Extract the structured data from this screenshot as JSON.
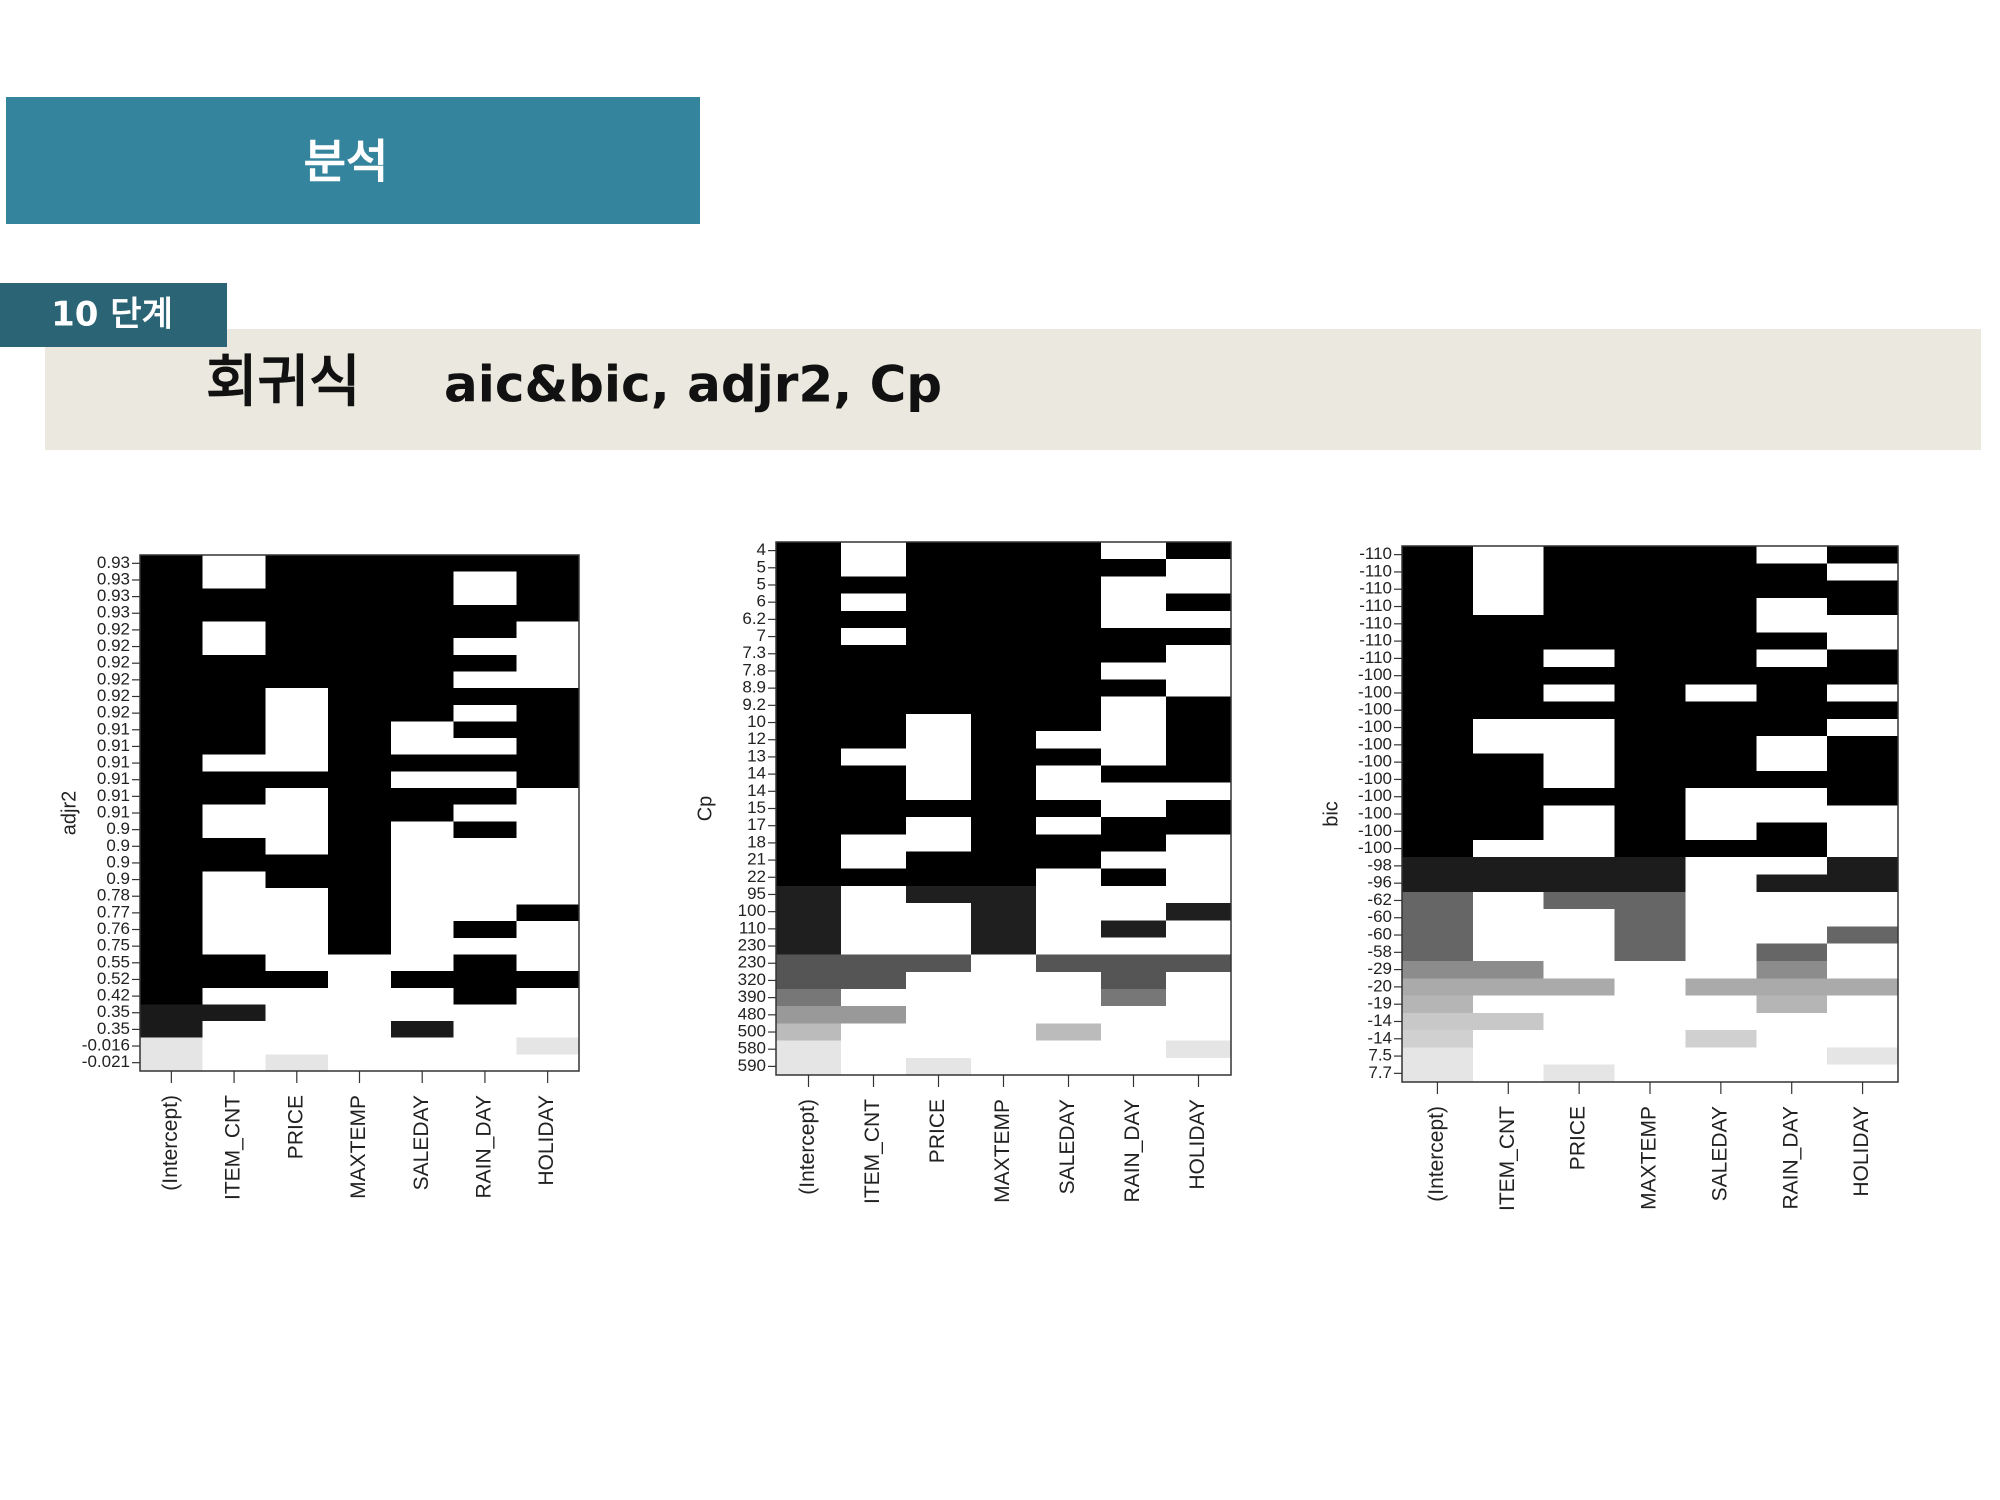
{
  "slide": {
    "section": "분석",
    "step": "10 단계",
    "heading": "회귀식",
    "subheading": "aic&bic, adjr2, Cp"
  },
  "chart_data": [
    {
      "type": "heatmap",
      "ylabel": "adjr2",
      "columns": [
        "(Intercept)",
        "ITEM_CNT",
        "PRICE",
        "MAXTEMP",
        "SALEDAY",
        "RAIN_DAY",
        "HOLIDAY"
      ],
      "row_labels": [
        "0.93",
        "0.93",
        "0.93",
        "0.93",
        "0.92",
        "0.92",
        "0.92",
        "0.92",
        "0.92",
        "0.92",
        "0.91",
        "0.91",
        "0.91",
        "0.91",
        "0.91",
        "0.91",
        "0.9",
        "0.9",
        "0.9",
        "0.9",
        "0.78",
        "0.77",
        "0.76",
        "0.75",
        "0.55",
        "0.52",
        "0.42",
        "0.35",
        "0.35",
        "-0.016",
        "-0.021"
      ],
      "row_colors": [
        "#000000",
        "#000000",
        "#000000",
        "#000000",
        "#000000",
        "#000000",
        "#000000",
        "#000000",
        "#000000",
        "#000000",
        "#000000",
        "#000000",
        "#000000",
        "#000000",
        "#000000",
        "#000000",
        "#000000",
        "#000000",
        "#000000",
        "#000000",
        "#000000",
        "#000000",
        "#000000",
        "#000000",
        "#000000",
        "#000000",
        "#000000",
        "#1a1a1a",
        "#1a1a1a",
        "#e5e5e5",
        "#e5e5e5"
      ],
      "matrix": [
        [
          1,
          0,
          1,
          1,
          1,
          1,
          1
        ],
        [
          1,
          0,
          1,
          1,
          1,
          0,
          1
        ],
        [
          1,
          1,
          1,
          1,
          1,
          0,
          1
        ],
        [
          1,
          1,
          1,
          1,
          1,
          1,
          1
        ],
        [
          1,
          0,
          1,
          1,
          1,
          1,
          0
        ],
        [
          1,
          0,
          1,
          1,
          1,
          0,
          0
        ],
        [
          1,
          1,
          1,
          1,
          1,
          1,
          0
        ],
        [
          1,
          1,
          1,
          1,
          1,
          0,
          0
        ],
        [
          1,
          1,
          0,
          1,
          1,
          1,
          1
        ],
        [
          1,
          1,
          0,
          1,
          1,
          0,
          1
        ],
        [
          1,
          1,
          0,
          1,
          0,
          1,
          1
        ],
        [
          1,
          1,
          0,
          1,
          0,
          0,
          1
        ],
        [
          1,
          0,
          0,
          1,
          1,
          1,
          1
        ],
        [
          1,
          1,
          1,
          1,
          0,
          0,
          1
        ],
        [
          1,
          1,
          0,
          1,
          1,
          1,
          0
        ],
        [
          1,
          0,
          0,
          1,
          1,
          0,
          0
        ],
        [
          1,
          0,
          0,
          1,
          0,
          1,
          0
        ],
        [
          1,
          1,
          0,
          1,
          0,
          0,
          0
        ],
        [
          1,
          1,
          1,
          1,
          0,
          0,
          0
        ],
        [
          1,
          0,
          1,
          1,
          0,
          0,
          0
        ],
        [
          1,
          0,
          0,
          1,
          0,
          0,
          0
        ],
        [
          1,
          0,
          0,
          1,
          0,
          0,
          1
        ],
        [
          1,
          0,
          0,
          1,
          0,
          1,
          0
        ],
        [
          1,
          0,
          0,
          1,
          0,
          0,
          0
        ],
        [
          1,
          1,
          0,
          0,
          0,
          1,
          0
        ],
        [
          1,
          1,
          1,
          0,
          1,
          1,
          1
        ],
        [
          1,
          0,
          0,
          0,
          0,
          1,
          0
        ],
        [
          1,
          1,
          0,
          0,
          0,
          0,
          0
        ],
        [
          1,
          0,
          0,
          0,
          1,
          0,
          0
        ],
        [
          1,
          0,
          0,
          0,
          0,
          0,
          1
        ],
        [
          1,
          0,
          1,
          0,
          0,
          0,
          0
        ]
      ]
    },
    {
      "type": "heatmap",
      "ylabel": "Cp",
      "columns": [
        "(Intercept)",
        "ITEM_CNT",
        "PRICE",
        "MAXTEMP",
        "SALEDAY",
        "RAIN_DAY",
        "HOLIDAY"
      ],
      "row_labels": [
        "4",
        "5",
        "5",
        "6",
        "6.2",
        "7",
        "7.3",
        "7.8",
        "8.9",
        "9.2",
        "10",
        "12",
        "13",
        "14",
        "14",
        "15",
        "17",
        "18",
        "21",
        "22",
        "95",
        "100",
        "110",
        "230",
        "230",
        "320",
        "390",
        "480",
        "500",
        "580",
        "590"
      ],
      "row_colors": [
        "#000000",
        "#000000",
        "#000000",
        "#000000",
        "#000000",
        "#000000",
        "#000000",
        "#000000",
        "#000000",
        "#000000",
        "#000000",
        "#000000",
        "#000000",
        "#000000",
        "#000000",
        "#000000",
        "#000000",
        "#000000",
        "#000000",
        "#000000",
        "#1f1f1f",
        "#1f1f1f",
        "#1f1f1f",
        "#1f1f1f",
        "#555555",
        "#555555",
        "#777777",
        "#999999",
        "#bbbbbb",
        "#e5e5e5",
        "#e5e5e5"
      ],
      "matrix": [
        [
          1,
          0,
          1,
          1,
          1,
          0,
          1
        ],
        [
          1,
          0,
          1,
          1,
          1,
          1,
          0
        ],
        [
          1,
          1,
          1,
          1,
          1,
          0,
          0
        ],
        [
          1,
          0,
          1,
          1,
          1,
          0,
          1
        ],
        [
          1,
          1,
          1,
          1,
          1,
          0,
          0
        ],
        [
          1,
          0,
          1,
          1,
          1,
          1,
          1
        ],
        [
          1,
          1,
          1,
          1,
          1,
          1,
          0
        ],
        [
          1,
          1,
          1,
          1,
          1,
          0,
          0
        ],
        [
          1,
          1,
          1,
          1,
          1,
          1,
          0
        ],
        [
          1,
          1,
          1,
          1,
          1,
          0,
          1
        ],
        [
          1,
          1,
          0,
          1,
          1,
          0,
          1
        ],
        [
          1,
          1,
          0,
          1,
          0,
          0,
          1
        ],
        [
          1,
          0,
          0,
          1,
          1,
          0,
          1
        ],
        [
          1,
          1,
          0,
          1,
          0,
          1,
          1
        ],
        [
          1,
          1,
          0,
          1,
          0,
          0,
          0
        ],
        [
          1,
          1,
          1,
          1,
          1,
          0,
          1
        ],
        [
          1,
          1,
          0,
          1,
          0,
          1,
          1
        ],
        [
          1,
          0,
          0,
          1,
          1,
          1,
          0
        ],
        [
          1,
          0,
          1,
          1,
          1,
          0,
          0
        ],
        [
          1,
          1,
          1,
          1,
          0,
          1,
          0
        ],
        [
          1,
          0,
          1,
          1,
          0,
          0,
          0
        ],
        [
          1,
          0,
          0,
          1,
          0,
          0,
          1
        ],
        [
          1,
          0,
          0,
          1,
          0,
          1,
          0
        ],
        [
          1,
          0,
          0,
          1,
          0,
          0,
          0
        ],
        [
          1,
          1,
          1,
          0,
          1,
          1,
          1
        ],
        [
          1,
          1,
          0,
          0,
          0,
          1,
          0
        ],
        [
          1,
          0,
          0,
          0,
          0,
          1,
          0
        ],
        [
          1,
          1,
          0,
          0,
          0,
          0,
          0
        ],
        [
          1,
          0,
          0,
          0,
          1,
          0,
          0
        ],
        [
          1,
          0,
          0,
          0,
          0,
          0,
          1
        ],
        [
          1,
          0,
          1,
          0,
          0,
          0,
          0
        ]
      ]
    },
    {
      "type": "heatmap",
      "ylabel": "bic",
      "columns": [
        "(Intercept)",
        "ITEM_CNT",
        "PRICE",
        "MAXTEMP",
        "SALEDAY",
        "RAIN_DAY",
        "HOLIDAY"
      ],
      "row_labels": [
        "-110",
        "-110",
        "-110",
        "-110",
        "-110",
        "-110",
        "-110",
        "-100",
        "-100",
        "-100",
        "-100",
        "-100",
        "-100",
        "-100",
        "-100",
        "-100",
        "-100",
        "-100",
        "-98",
        "-96",
        "-62",
        "-60",
        "-60",
        "-58",
        "-29",
        "-20",
        "-19",
        "-14",
        "-14",
        "7.5",
        "7.7"
      ],
      "row_colors": [
        "#000000",
        "#000000",
        "#000000",
        "#000000",
        "#000000",
        "#000000",
        "#000000",
        "#000000",
        "#000000",
        "#000000",
        "#000000",
        "#000000",
        "#000000",
        "#000000",
        "#000000",
        "#000000",
        "#000000",
        "#000000",
        "#1c1c1c",
        "#1c1c1c",
        "#666666",
        "#666666",
        "#666666",
        "#666666",
        "#8c8c8c",
        "#aaaaaa",
        "#b5b5b5",
        "#c8c8c8",
        "#d0d0d0",
        "#e5e5e5",
        "#e5e5e5"
      ],
      "matrix": [
        [
          1,
          0,
          1,
          1,
          1,
          0,
          1
        ],
        [
          1,
          0,
          1,
          1,
          1,
          1,
          0
        ],
        [
          1,
          0,
          1,
          1,
          1,
          1,
          1
        ],
        [
          1,
          0,
          1,
          1,
          1,
          0,
          1
        ],
        [
          1,
          1,
          1,
          1,
          1,
          0,
          0
        ],
        [
          1,
          1,
          1,
          1,
          1,
          1,
          0
        ],
        [
          1,
          1,
          0,
          1,
          1,
          0,
          1
        ],
        [
          1,
          1,
          1,
          1,
          1,
          1,
          1
        ],
        [
          1,
          1,
          0,
          1,
          0,
          1,
          0
        ],
        [
          1,
          1,
          1,
          1,
          1,
          1,
          1
        ],
        [
          1,
          0,
          0,
          1,
          1,
          1,
          0
        ],
        [
          1,
          0,
          0,
          1,
          1,
          0,
          1
        ],
        [
          1,
          1,
          0,
          1,
          1,
          0,
          1
        ],
        [
          1,
          1,
          0,
          1,
          1,
          1,
          1
        ],
        [
          1,
          1,
          1,
          1,
          0,
          0,
          1
        ],
        [
          1,
          1,
          0,
          1,
          0,
          0,
          0
        ],
        [
          1,
          1,
          0,
          1,
          0,
          1,
          0
        ],
        [
          1,
          0,
          0,
          1,
          1,
          1,
          0
        ],
        [
          1,
          1,
          1,
          1,
          0,
          0,
          1
        ],
        [
          1,
          1,
          1,
          1,
          0,
          1,
          1
        ],
        [
          1,
          0,
          1,
          1,
          0,
          0,
          0
        ],
        [
          1,
          0,
          0,
          1,
          0,
          0,
          0
        ],
        [
          1,
          0,
          0,
          1,
          0,
          0,
          1
        ],
        [
          1,
          0,
          0,
          1,
          0,
          1,
          0
        ],
        [
          1,
          1,
          0,
          0,
          0,
          1,
          0
        ],
        [
          1,
          1,
          1,
          0,
          1,
          1,
          1
        ],
        [
          1,
          0,
          0,
          0,
          0,
          1,
          0
        ],
        [
          1,
          1,
          0,
          0,
          0,
          0,
          0
        ],
        [
          1,
          0,
          0,
          0,
          1,
          0,
          0
        ],
        [
          1,
          0,
          0,
          0,
          0,
          0,
          1
        ],
        [
          1,
          0,
          1,
          0,
          0,
          0,
          0
        ]
      ]
    }
  ]
}
